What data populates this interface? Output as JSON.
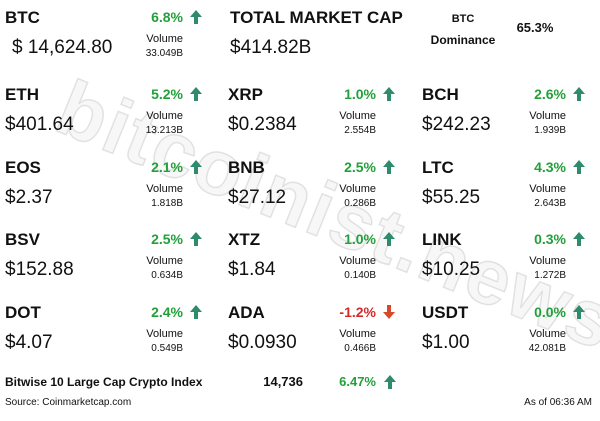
{
  "header": {
    "btc": {
      "symbol": "BTC",
      "change": "6.8%",
      "trend": "up",
      "price": "$ 14,624.80",
      "volume_label": "Volume",
      "volume": "33.049B"
    },
    "total_market_cap": {
      "label": "TOTAL MARKET CAP",
      "value": "$414.82B"
    },
    "dominance": {
      "label_line1": "BTC",
      "label_line2": "Dominance",
      "value": "65.3%"
    }
  },
  "coins": [
    [
      {
        "symbol": "ETH",
        "change": "5.2%",
        "trend": "up",
        "price": "$401.64",
        "volume_label": "Volume",
        "volume": "13.213B"
      },
      {
        "symbol": "XRP",
        "change": "1.0%",
        "trend": "up",
        "price": "$0.2384",
        "volume_label": "Volume",
        "volume": "2.554B"
      },
      {
        "symbol": "BCH",
        "change": "2.6%",
        "trend": "up",
        "price": "$242.23",
        "volume_label": "Volume",
        "volume": "1.939B"
      }
    ],
    [
      {
        "symbol": "EOS",
        "change": "2.1%",
        "trend": "up",
        "price": "$2.37",
        "volume_label": "Volume",
        "volume": "1.818B"
      },
      {
        "symbol": "BNB",
        "change": "2.5%",
        "trend": "up",
        "price": "$27.12",
        "volume_label": "Volume",
        "volume": "0.286B"
      },
      {
        "symbol": "LTC",
        "change": "4.3%",
        "trend": "up",
        "price": "$55.25",
        "volume_label": "Volume",
        "volume": "2.643B"
      }
    ],
    [
      {
        "symbol": "BSV",
        "change": "2.5%",
        "trend": "up",
        "price": "$152.88",
        "volume_label": "Volume",
        "volume": "0.634B"
      },
      {
        "symbol": "XTZ",
        "change": "1.0%",
        "trend": "up",
        "price": "$1.84",
        "volume_label": "Volume",
        "volume": "0.140B"
      },
      {
        "symbol": "LINK",
        "change": "0.3%",
        "trend": "up",
        "price": "$10.25",
        "volume_label": "Volume",
        "volume": "1.272B"
      }
    ],
    [
      {
        "symbol": "DOT",
        "change": "2.4%",
        "trend": "up",
        "price": "$4.07",
        "volume_label": "Volume",
        "volume": "0.549B"
      },
      {
        "symbol": "ADA",
        "change": "-1.2%",
        "trend": "down",
        "price": "$0.0930",
        "volume_label": "Volume",
        "volume": "0.466B"
      },
      {
        "symbol": "USDT",
        "change": "0.0%",
        "trend": "up",
        "price": "$1.00",
        "volume_label": "Volume",
        "volume": "42.081B"
      }
    ]
  ],
  "index": {
    "name": "Bitwise 10 Large Cap Crypto Index",
    "value": "14,736",
    "change": "6.47%",
    "trend": "up"
  },
  "footer": {
    "source": "Source: Coinmarketcap.com",
    "as_of": "As of 06:36 AM"
  },
  "watermark": "bitcoinist.news"
}
